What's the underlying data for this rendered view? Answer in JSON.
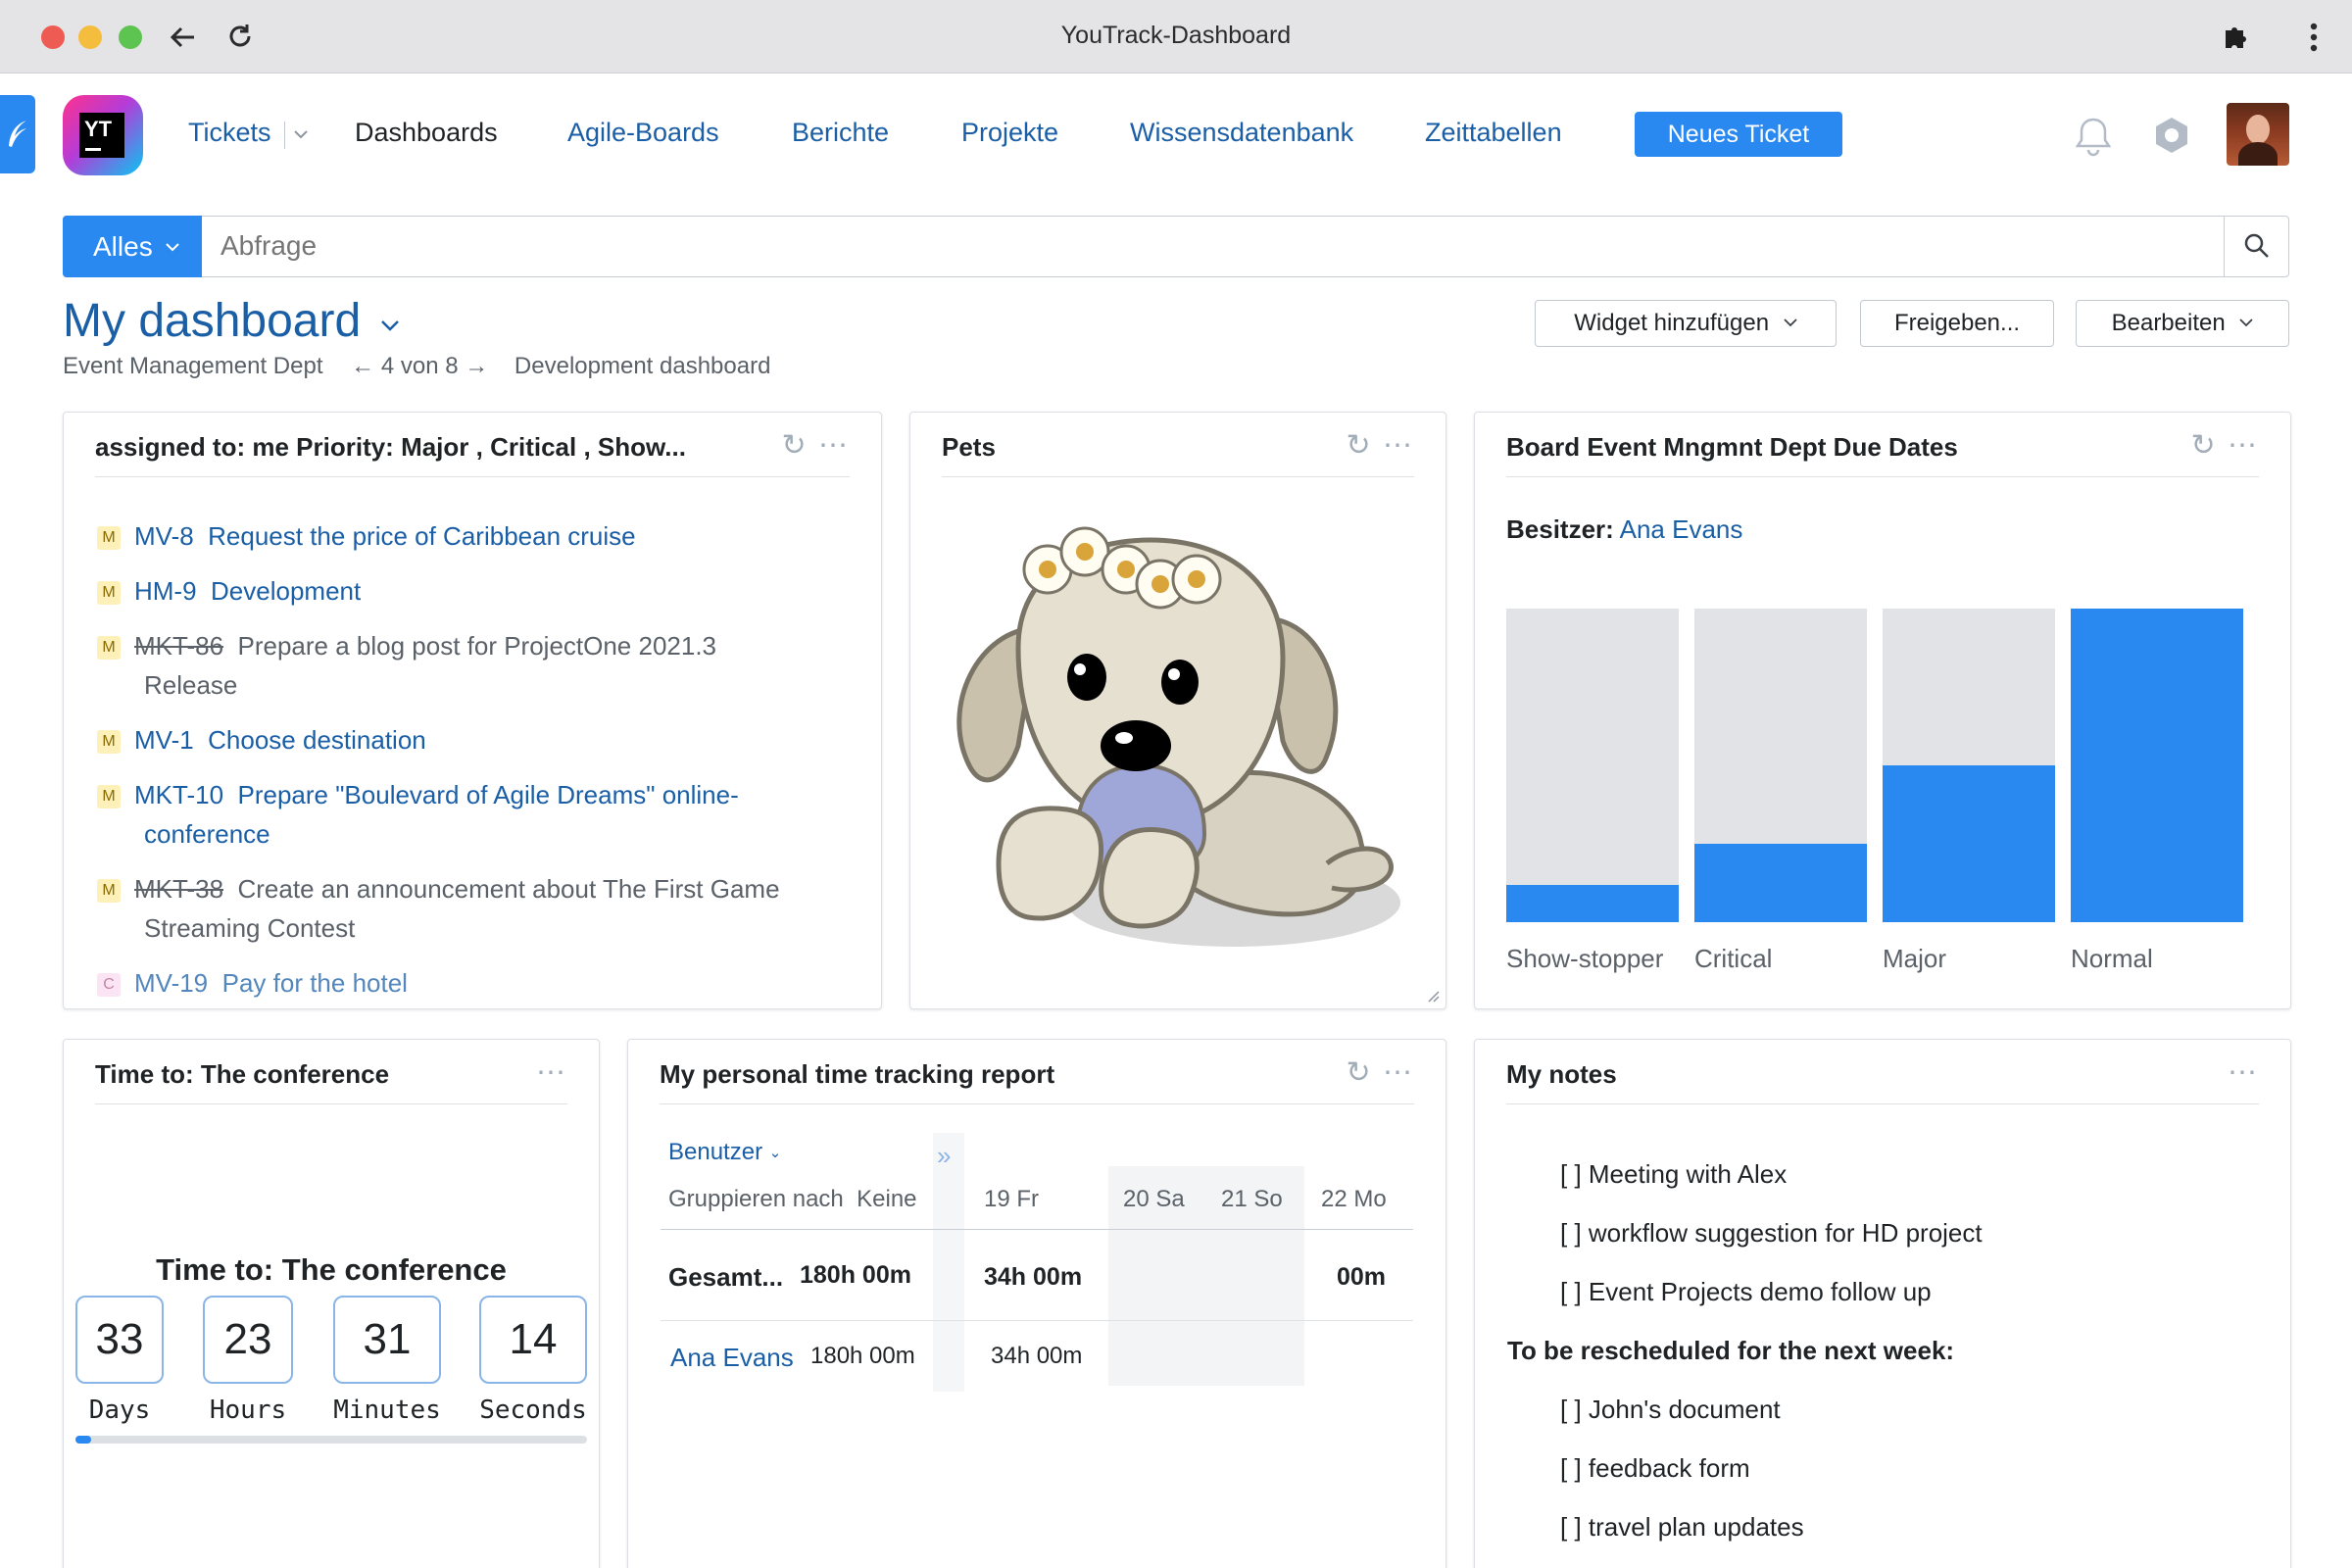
{
  "window": {
    "title": "YouTrack-Dashboard"
  },
  "logo": {
    "text": "YT"
  },
  "nav": {
    "tickets": "Tickets",
    "dashboards": "Dashboards",
    "agile": "Agile-Boards",
    "reports": "Berichte",
    "projects": "Projekte",
    "knowledge": "Wissensdatenbank",
    "timesheets": "Zeittabellen",
    "new_ticket": "Neues Ticket"
  },
  "search": {
    "scope": "Alles",
    "placeholder": "Abfrage"
  },
  "dashboard": {
    "title": "My dashboard",
    "prev": "Event Management Dept",
    "position": "4 von 8",
    "next": "Development dashboard",
    "add_widget": "Widget hinzufügen",
    "share": "Freigeben...",
    "edit": "Bearbeiten"
  },
  "issues_widget": {
    "title": "assigned to: me Priority: Major , Critical , Show...",
    "items": [
      {
        "priority": "M",
        "id": "MV-8",
        "summary": "Request the price of Caribbean cruise",
        "resolved": false
      },
      {
        "priority": "M",
        "id": "HM-9",
        "summary": "Development",
        "resolved": false
      },
      {
        "priority": "M",
        "id": "MKT-86",
        "summary": "Prepare a blog post for ProjectOne 2021.3",
        "summary2": "Release",
        "resolved": true
      },
      {
        "priority": "M",
        "id": "MV-1",
        "summary": "Choose destination",
        "resolved": false
      },
      {
        "priority": "M",
        "id": "MKT-10",
        "summary": "Prepare \"Boulevard of Agile Dreams\" online-",
        "summary2": "conference",
        "resolved": false
      },
      {
        "priority": "M",
        "id": "MKT-38",
        "summary": "Create an announcement about The First Game",
        "summary2": "Streaming Contest",
        "resolved": true
      },
      {
        "priority": "C",
        "id": "MV-19",
        "summary": "Pay for the hotel",
        "resolved": false
      }
    ]
  },
  "pets_widget": {
    "title": "Pets"
  },
  "board_widget": {
    "title": "Board Event Mngmnt Dept Due Dates",
    "owner_label": "Besitzer:",
    "owner": "Ana Evans"
  },
  "chart_data": {
    "type": "bar",
    "categories": [
      "Show-stopper",
      "Critical",
      "Major",
      "Normal"
    ],
    "values": [
      0.12,
      0.25,
      0.5,
      1.0
    ],
    "ylim": [
      0,
      1
    ],
    "colors": {
      "filled": "#2a89f0",
      "background": "#e1e3e6"
    }
  },
  "countdown_widget": {
    "title": "Time to: The conference",
    "heading": "Time to: The conference",
    "days": "33",
    "hours": "23",
    "minutes": "31",
    "seconds": "14",
    "days_label": "Days",
    "hours_label": "Hours",
    "minutes_label": "Minutes",
    "seconds_label": "Seconds",
    "progress": 0.03
  },
  "time_widget": {
    "title": "My personal time tracking report",
    "user_dropdown": "Benutzer",
    "group_by_label": "Gruppieren nach",
    "group_by_value": "Keine",
    "days": [
      "19 Fr",
      "20 Sa",
      "21 So",
      "22 Mo"
    ],
    "total_label": "Gesamt...",
    "total": "180h 00m",
    "total_day1": "34h 00m",
    "total_day4": "00m",
    "user": "Ana Evans",
    "user_total": "180h 00m",
    "user_day1": "34h 00m"
  },
  "notes_widget": {
    "title": "My notes",
    "items": [
      "[ ] Meeting with Alex",
      "[ ] workflow suggestion for HD project",
      "[ ] Event Projects demo follow up"
    ],
    "section": "To be rescheduled for the next week:",
    "items2": [
      "[ ] John's document",
      "[ ] feedback form",
      "[ ] travel plan updates"
    ]
  }
}
